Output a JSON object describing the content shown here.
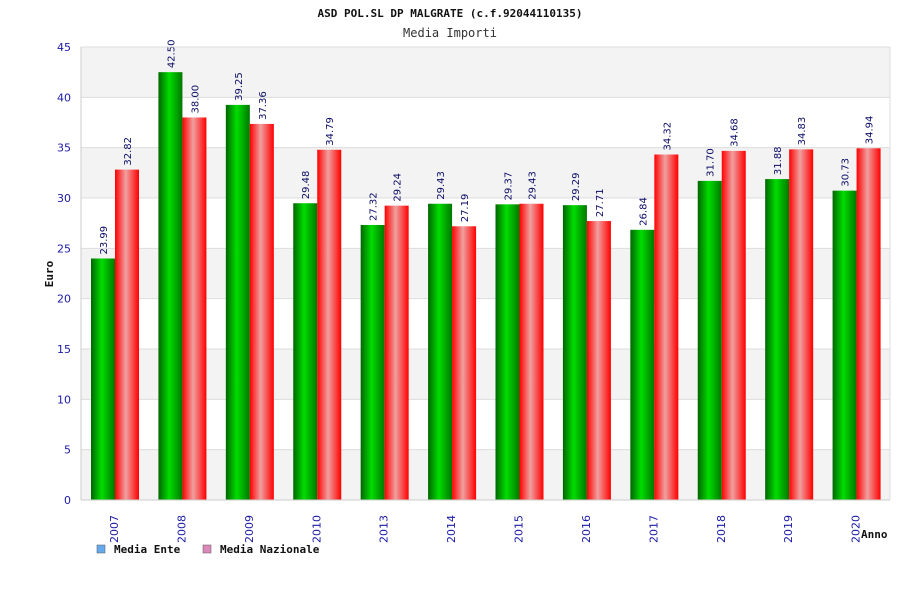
{
  "chart_data": {
    "type": "bar",
    "title": "ASD POL.SL DP MALGRATE (c.f.92044110135)",
    "subtitle": "Media Importi",
    "ylabel": "Euro",
    "xlabel": "Anno",
    "ylim": [
      0,
      45
    ],
    "yticks": [
      0,
      5,
      10,
      15,
      20,
      25,
      30,
      35,
      40,
      45
    ],
    "grid": true,
    "legend_position": "bottom-left",
    "categories": [
      "2007",
      "2008",
      "2009",
      "2010",
      "2013",
      "2014",
      "2015",
      "2016",
      "2017",
      "2018",
      "2019",
      "2020"
    ],
    "series": [
      {
        "name": "Media Ente",
        "bar_color": "#00a000",
        "legend_color": "#66aaee",
        "values": [
          23.99,
          42.5,
          39.25,
          29.48,
          27.32,
          29.43,
          29.37,
          29.29,
          26.84,
          31.7,
          31.88,
          30.73
        ],
        "labels": [
          "23.99",
          "42.50",
          "39.25",
          "29.48",
          "27.32",
          "29.43",
          "29.37",
          "29.29",
          "26.84",
          "31.70",
          "31.88",
          "30.73"
        ]
      },
      {
        "name": "Media Nazionale",
        "bar_color": "#ee1122",
        "legend_color": "#dd88bb",
        "values": [
          32.82,
          38.0,
          37.36,
          34.79,
          29.24,
          27.19,
          29.43,
          27.71,
          34.32,
          34.68,
          34.83,
          34.94
        ],
        "labels": [
          "32.82",
          "38.00",
          "37.36",
          "34.79",
          "29.24",
          "27.19",
          "29.43",
          "27.71",
          "34.32",
          "34.68",
          "34.83",
          "34.94"
        ]
      }
    ]
  }
}
